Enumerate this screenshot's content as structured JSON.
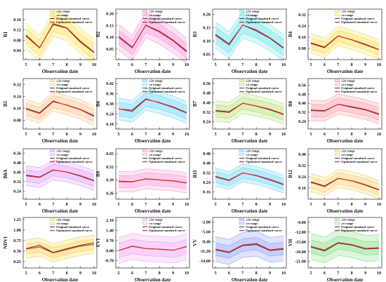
{
  "figure": {
    "x_axis_label": "Observation date"
  },
  "legend_labels": {
    "two_sigma": "±2σ range",
    "one_sigma": "±σ range",
    "original": "Original standard curve",
    "optimized": "Optimized standard curve"
  },
  "colors": {
    "original": "#222222",
    "optimized": "#e0313a"
  },
  "chart_data": [
    {
      "type": "line",
      "ylabel": "B1",
      "color": "#ffe64d",
      "yticks": [
        "0.16",
        "0.12",
        "0.08",
        "0.04"
      ],
      "ylim": [
        0.005,
        0.2
      ],
      "x": [
        5,
        6,
        7,
        8,
        9,
        10
      ],
      "original": [
        0.1,
        0.052,
        0.14,
        0.126,
        0.072,
        0.032
      ],
      "optimized": [
        0.096,
        0.05,
        0.144,
        0.128,
        0.076,
        0.034
      ],
      "one_sigma": 0.03,
      "two_sigma": 0.05
    },
    {
      "type": "line",
      "ylabel": "B2",
      "color": "#ff8bd8",
      "yticks": [
        "0.20",
        "0.15",
        "0.10",
        "0.05"
      ],
      "ylim": [
        0.005,
        0.22
      ],
      "x": [
        5,
        6,
        7,
        8,
        9,
        10
      ],
      "original": [
        0.105,
        0.058,
        0.15,
        0.122,
        0.085,
        0.038
      ],
      "optimized": [
        0.1,
        0.055,
        0.152,
        0.126,
        0.088,
        0.042
      ],
      "one_sigma": 0.03,
      "two_sigma": 0.055
    },
    {
      "type": "line",
      "ylabel": "B3",
      "color": "#5fe7ee",
      "yticks": [
        "0.20",
        "0.15",
        "0.10",
        "0.05"
      ],
      "ylim": [
        0.03,
        0.22
      ],
      "x": [
        5,
        6,
        7,
        8,
        9,
        10
      ],
      "original": [
        0.125,
        0.09,
        0.16,
        0.138,
        0.11,
        0.072
      ],
      "optimized": [
        0.122,
        0.085,
        0.16,
        0.142,
        0.112,
        0.075
      ],
      "one_sigma": 0.03,
      "two_sigma": 0.05
    },
    {
      "type": "line",
      "ylabel": "B4",
      "color": "#ffe14a",
      "yticks": [
        "0.32",
        "0.24",
        "0.16",
        "0.08"
      ],
      "ylim": [
        0.0,
        0.36
      ],
      "x": [
        5,
        6,
        7,
        8,
        9,
        10
      ],
      "original": [
        0.12,
        0.09,
        0.17,
        0.14,
        0.105,
        0.07
      ],
      "optimized": [
        0.115,
        0.085,
        0.168,
        0.142,
        0.11,
        0.072
      ],
      "one_sigma": 0.04,
      "two_sigma": 0.07
    },
    {
      "type": "line",
      "ylabel": "B5",
      "color": "#ffc78a",
      "yticks": [
        "0.32",
        "0.24",
        "0.16",
        "0.08"
      ],
      "ylim": [
        0.02,
        0.36
      ],
      "x": [
        5,
        6,
        7,
        8,
        9,
        10
      ],
      "original": [
        0.16,
        0.13,
        0.21,
        0.18,
        0.15,
        0.105
      ],
      "optimized": [
        0.155,
        0.125,
        0.205,
        0.182,
        0.152,
        0.11
      ],
      "one_sigma": 0.04,
      "two_sigma": 0.065
    },
    {
      "type": "line",
      "ylabel": "B6",
      "color": "#6ad8ff",
      "yticks": [
        "0.42",
        "0.36",
        "0.30",
        "0.24",
        "0.18"
      ],
      "ylim": [
        0.15,
        0.45
      ],
      "x": [
        5,
        6,
        7,
        8,
        9,
        10
      ],
      "original": [
        0.27,
        0.262,
        0.33,
        0.305,
        0.278,
        0.245
      ],
      "optimized": [
        0.27,
        0.255,
        0.326,
        0.308,
        0.282,
        0.248
      ],
      "one_sigma": 0.04,
      "two_sigma": 0.065
    },
    {
      "type": "line",
      "ylabel": "B7",
      "color": "#b8e36a",
      "yticks": [
        "0.56",
        "0.48",
        "0.40",
        "0.32",
        "0.24"
      ],
      "ylim": [
        0.18,
        0.6
      ],
      "x": [
        5,
        6,
        7,
        8,
        9,
        10
      ],
      "original": [
        0.335,
        0.325,
        0.395,
        0.37,
        0.34,
        0.3
      ],
      "optimized": [
        0.33,
        0.318,
        0.395,
        0.372,
        0.345,
        0.305
      ],
      "one_sigma": 0.05,
      "two_sigma": 0.085
    },
    {
      "type": "line",
      "ylabel": "B8",
      "color": "#ff9aa8",
      "yticks": [
        "0.56",
        "0.48",
        "0.40",
        "0.32",
        "0.24"
      ],
      "ylim": [
        0.17,
        0.62
      ],
      "x": [
        5,
        6,
        7,
        8,
        9,
        10
      ],
      "original": [
        0.34,
        0.335,
        0.39,
        0.365,
        0.34,
        0.3
      ],
      "optimized": [
        0.335,
        0.33,
        0.392,
        0.37,
        0.345,
        0.305
      ],
      "one_sigma": 0.055,
      "two_sigma": 0.09
    },
    {
      "type": "line",
      "ylabel": "B8A",
      "color": "#e19bff",
      "yticks": [
        "0.56",
        "0.48",
        "0.40",
        "0.32",
        "0.24"
      ],
      "ylim": [
        0.17,
        0.6
      ],
      "x": [
        5,
        6,
        7,
        8,
        9,
        10
      ],
      "original": [
        0.375,
        0.36,
        0.42,
        0.4,
        0.365,
        0.325
      ],
      "optimized": [
        0.37,
        0.355,
        0.418,
        0.402,
        0.37,
        0.33
      ],
      "one_sigma": 0.05,
      "two_sigma": 0.085
    },
    {
      "type": "line",
      "ylabel": "B9",
      "color": "#ff9ad8",
      "yticks": [
        "0.65",
        "0.52",
        "0.39",
        "0.26"
      ],
      "ylim": [
        0.2,
        0.7
      ],
      "x": [
        5,
        6,
        7,
        8,
        9,
        10
      ],
      "original": [
        0.38,
        0.375,
        0.4,
        0.39,
        0.38,
        0.36
      ],
      "optimized": [
        0.375,
        0.372,
        0.402,
        0.392,
        0.382,
        0.362
      ],
      "one_sigma": 0.06,
      "two_sigma": 0.1
    },
    {
      "type": "line",
      "ylabel": "B11",
      "color": "#6ad8ff",
      "yticks": [
        "0.48",
        "0.40",
        "0.32",
        "0.24",
        "0.16"
      ],
      "ylim": [
        0.1,
        0.52
      ],
      "x": [
        5,
        6,
        7,
        8,
        9,
        10
      ],
      "original": [
        0.29,
        0.26,
        0.32,
        0.295,
        0.26,
        0.22
      ],
      "optimized": [
        0.285,
        0.255,
        0.318,
        0.298,
        0.265,
        0.225
      ],
      "one_sigma": 0.045,
      "two_sigma": 0.075
    },
    {
      "type": "line",
      "ylabel": "B12",
      "color": "#ffd86a",
      "yticks": [
        "0.40",
        "0.32",
        "0.24",
        "0.16"
      ],
      "ylim": [
        0.08,
        0.44
      ],
      "x": [
        5,
        6,
        7,
        8,
        9,
        10
      ],
      "original": [
        0.205,
        0.175,
        0.23,
        0.21,
        0.18,
        0.145
      ],
      "optimized": [
        0.2,
        0.17,
        0.228,
        0.212,
        0.184,
        0.148
      ],
      "one_sigma": 0.04,
      "two_sigma": 0.065
    },
    {
      "type": "line",
      "ylabel": "NDVI",
      "color": "#ffd84a",
      "yticks": [
        "1.25",
        "1.00",
        "0.75",
        "0.50",
        "0.25"
      ],
      "ylim": [
        0.1,
        1.3
      ],
      "x": [
        5,
        6,
        7,
        8,
        9,
        10
      ],
      "original": [
        0.56,
        0.64,
        0.47,
        0.56,
        0.64,
        0.7
      ],
      "optimized": [
        0.55,
        0.6,
        0.46,
        0.54,
        0.62,
        0.66
      ],
      "one_sigma": 0.12,
      "two_sigma": 0.22
    },
    {
      "type": "line",
      "ylabel": "EVI",
      "color": "#f5a3f5",
      "yticks": [
        "2.10",
        "1.40",
        "0.70",
        "0.00",
        "-0.70"
      ],
      "ylim": [
        -1.2,
        2.3
      ],
      "x": [
        5,
        6,
        7,
        8,
        9,
        10
      ],
      "original": [
        0.0,
        0.32,
        0.15,
        0.1,
        0.02,
        0.3
      ],
      "optimized": [
        0.0,
        0.3,
        0.14,
        0.11,
        0.03,
        0.28
      ],
      "one_sigma": 0.5,
      "two_sigma": 0.9
    },
    {
      "type": "line",
      "ylabel": "VV",
      "color": "#8a9aff",
      "yticks": [
        "-2.80",
        "-5.60",
        "-8.40",
        "-11.20",
        "-14.00"
      ],
      "ylim": [
        -16.0,
        -1.5
      ],
      "x": [
        5,
        6,
        7,
        8,
        9,
        10
      ],
      "original": [
        -10.8,
        -11.6,
        -9.6,
        -9.3,
        -11.0,
        -10.6
      ],
      "optimized": [
        -10.6,
        -11.4,
        -9.4,
        -9.0,
        -10.8,
        -10.4
      ],
      "one_sigma": 1.8,
      "two_sigma": 3.6
    },
    {
      "type": "line",
      "ylabel": "VH",
      "color": "#7fe07f",
      "yticks": [
        "-9.00",
        "-12.00",
        "-15.00",
        "-18.00",
        "-21.00"
      ],
      "ylim": [
        -23.0,
        -7.5
      ],
      "x": [
        5,
        6,
        7,
        8,
        9,
        10
      ],
      "original": [
        -16.6,
        -17.8,
        -15.4,
        -16.0,
        -17.2,
        -17.0
      ],
      "optimized": [
        -16.4,
        -17.5,
        -15.2,
        -15.8,
        -17.0,
        -16.8
      ],
      "one_sigma": 2.0,
      "two_sigma": 4.0
    }
  ]
}
